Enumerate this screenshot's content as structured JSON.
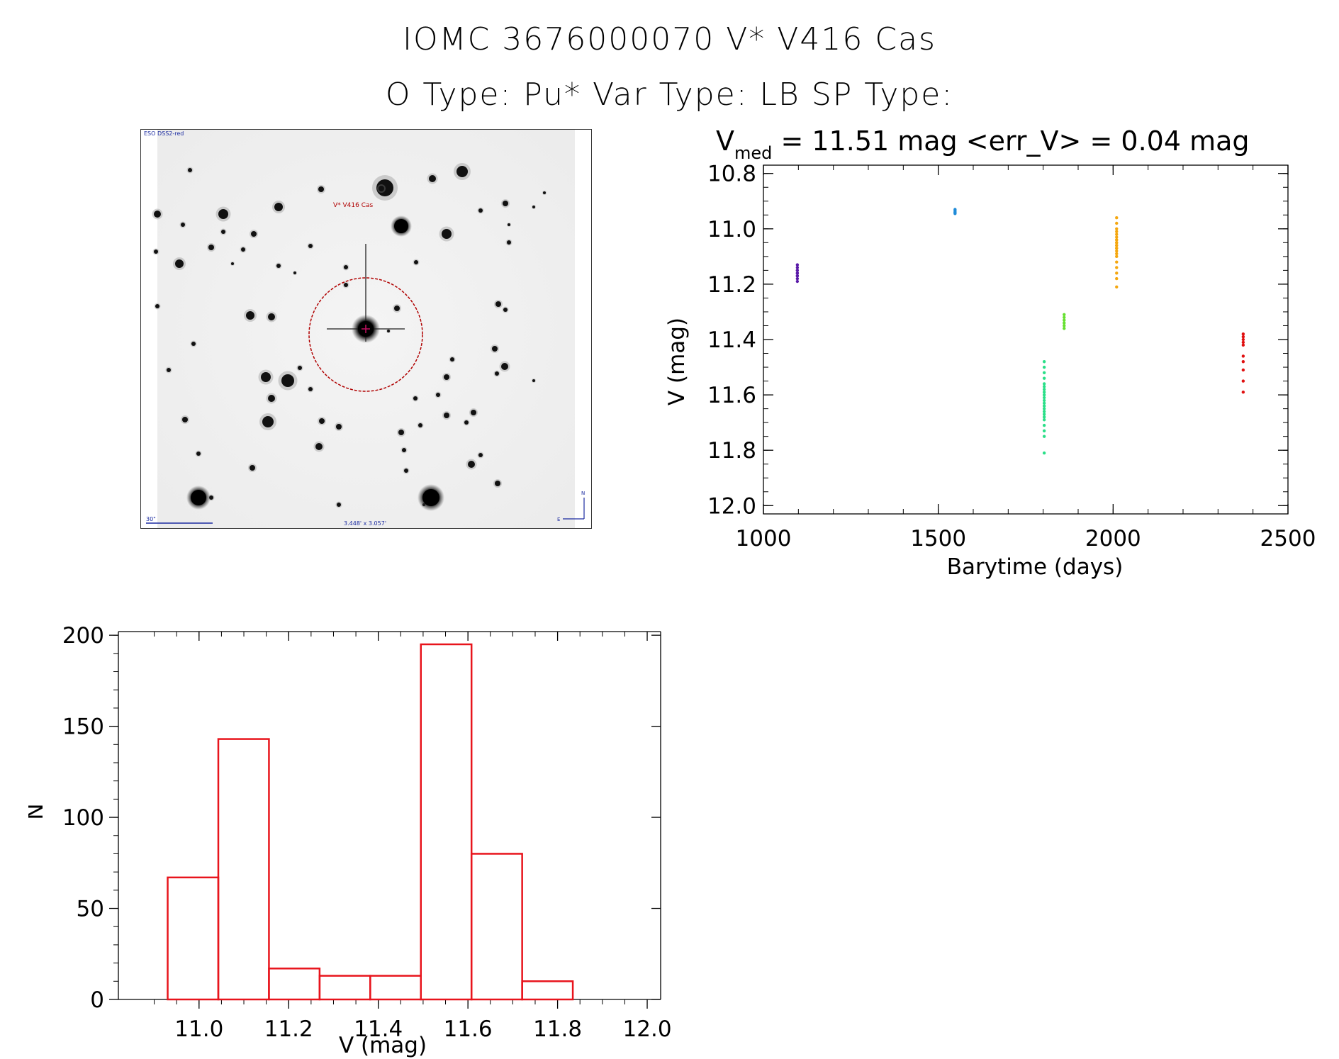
{
  "header": {
    "line1": "IOMC 3676000070   V* V416 Cas",
    "line2": "O Type: Pu*  Var Type: LB  SP Type:"
  },
  "image_panel": {
    "survey_label": "ESO DSS2-red",
    "target_label": "V* V416 Cas",
    "scale_label": "30\"",
    "fov_label": "3.448' x 3.057'",
    "north_label": "N",
    "east_label": "E"
  },
  "chart_data": [
    {
      "type": "scatter",
      "title_prefix": "V",
      "title_subscript": "med",
      "title_rest": " = 11.51 mag <err_V> = 0.04 mag",
      "xlabel": "Barytime (days)",
      "ylabel": "V (mag)",
      "xlim": [
        1000,
        2500
      ],
      "ylim": [
        12.03,
        10.77
      ],
      "y_inverted": true,
      "xticks": [
        1000,
        1500,
        2000,
        2500
      ],
      "yticks": [
        10.8,
        11.0,
        11.2,
        11.4,
        11.6,
        11.8,
        12.0
      ],
      "yticklabels": [
        "10.8",
        "11.0",
        "11.2",
        "11.4",
        "11.6",
        "11.8",
        "12.0"
      ],
      "series": [
        {
          "color": "#5a1aa8",
          "x": [
            1097,
            1097,
            1097,
            1097,
            1097,
            1097,
            1097,
            1097,
            1097,
            1097
          ],
          "y": [
            11.13,
            11.14,
            11.15,
            11.15,
            11.16,
            11.16,
            11.17,
            11.17,
            11.18,
            11.19
          ]
        },
        {
          "color": "#1f8bd8",
          "x": [
            1548,
            1548,
            1548,
            1548,
            1548
          ],
          "y": [
            10.93,
            10.935,
            10.94,
            10.94,
            10.945
          ]
        },
        {
          "color": "#2adf88",
          "x": [
            1803,
            1803,
            1803,
            1803,
            1803,
            1803,
            1803,
            1803,
            1803,
            1803,
            1803,
            1803,
            1803,
            1803,
            1803,
            1803,
            1803,
            1803,
            1803,
            1803,
            1803,
            1803
          ],
          "y": [
            11.48,
            11.5,
            11.52,
            11.54,
            11.56,
            11.57,
            11.58,
            11.59,
            11.6,
            11.61,
            11.62,
            11.63,
            11.64,
            11.65,
            11.66,
            11.67,
            11.68,
            11.69,
            11.71,
            11.73,
            11.75,
            11.81
          ]
        },
        {
          "color": "#66e030",
          "x": [
            1860,
            1860,
            1860,
            1860,
            1860,
            1860
          ],
          "y": [
            11.31,
            11.32,
            11.33,
            11.34,
            11.35,
            11.36
          ]
        },
        {
          "color": "#f5a70f",
          "x": [
            2010,
            2010,
            2010,
            2010,
            2010,
            2010,
            2010,
            2010,
            2010,
            2010,
            2010,
            2010,
            2010,
            2010,
            2010,
            2010,
            2010,
            2010,
            2010,
            2010,
            2010,
            2010
          ],
          "y": [
            10.96,
            10.98,
            11.0,
            11.01,
            11.02,
            11.03,
            11.04,
            11.04,
            11.05,
            11.05,
            11.06,
            11.06,
            11.07,
            11.07,
            11.08,
            11.09,
            11.1,
            11.12,
            11.14,
            11.16,
            11.18,
            11.21
          ]
        },
        {
          "color": "#e01010",
          "x": [
            2372,
            2372,
            2372,
            2372,
            2372,
            2372,
            2372,
            2372,
            2372,
            2372
          ],
          "y": [
            11.38,
            11.39,
            11.4,
            11.41,
            11.42,
            11.46,
            11.48,
            11.51,
            11.55,
            11.59
          ]
        }
      ]
    },
    {
      "type": "bar",
      "xlabel": "V (mag)",
      "ylabel": "N",
      "xlim": [
        10.82,
        12.03
      ],
      "ylim": [
        0,
        202
      ],
      "xticks": [
        11.0,
        11.2,
        11.4,
        11.6,
        11.8,
        12.0
      ],
      "xticklabels": [
        "11.0",
        "11.2",
        "11.4",
        "11.6",
        "11.8",
        "12.0"
      ],
      "yticks": [
        0,
        50,
        100,
        150,
        200
      ],
      "bin_edges": [
        10.93,
        11.043,
        11.156,
        11.269,
        11.382,
        11.495,
        11.608,
        11.721,
        11.834
      ],
      "values": [
        67,
        143,
        17,
        13,
        13,
        195,
        80,
        10
      ],
      "color": "#e8141c"
    }
  ]
}
